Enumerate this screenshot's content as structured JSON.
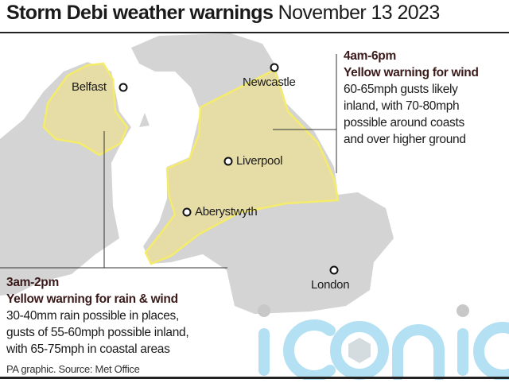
{
  "title": {
    "bold": "Storm Debi weather warnings",
    "date": "November 13 2023"
  },
  "cities": {
    "belfast": "Belfast",
    "newcastle": "Newcastle",
    "liverpool": "Liverpool",
    "aberystwyth": "Aberystwyth",
    "london": "London"
  },
  "warning_wind": {
    "time": "4am-6pm",
    "heading": "Yellow warning for wind",
    "lines": [
      "60-65mph gusts likely",
      "inland, with 70-80mph",
      "possible around coasts",
      "and over higher ground"
    ]
  },
  "warning_rain_wind": {
    "time": "3am-2pm",
    "heading": "Yellow warning for rain & wind",
    "lines": [
      "30-40mm rain possible in places,",
      "gusts of 55-60mph possible inland,",
      "with 65-75mph in coastal areas"
    ]
  },
  "source": "PA graphic. Source: Met Office",
  "watermark": "iconic",
  "colors": {
    "land": "#d4d4d4",
    "warning_fill": "#e6dca6",
    "warning_outline": "#f4ec6a",
    "watermark": "#b3e0f2"
  }
}
